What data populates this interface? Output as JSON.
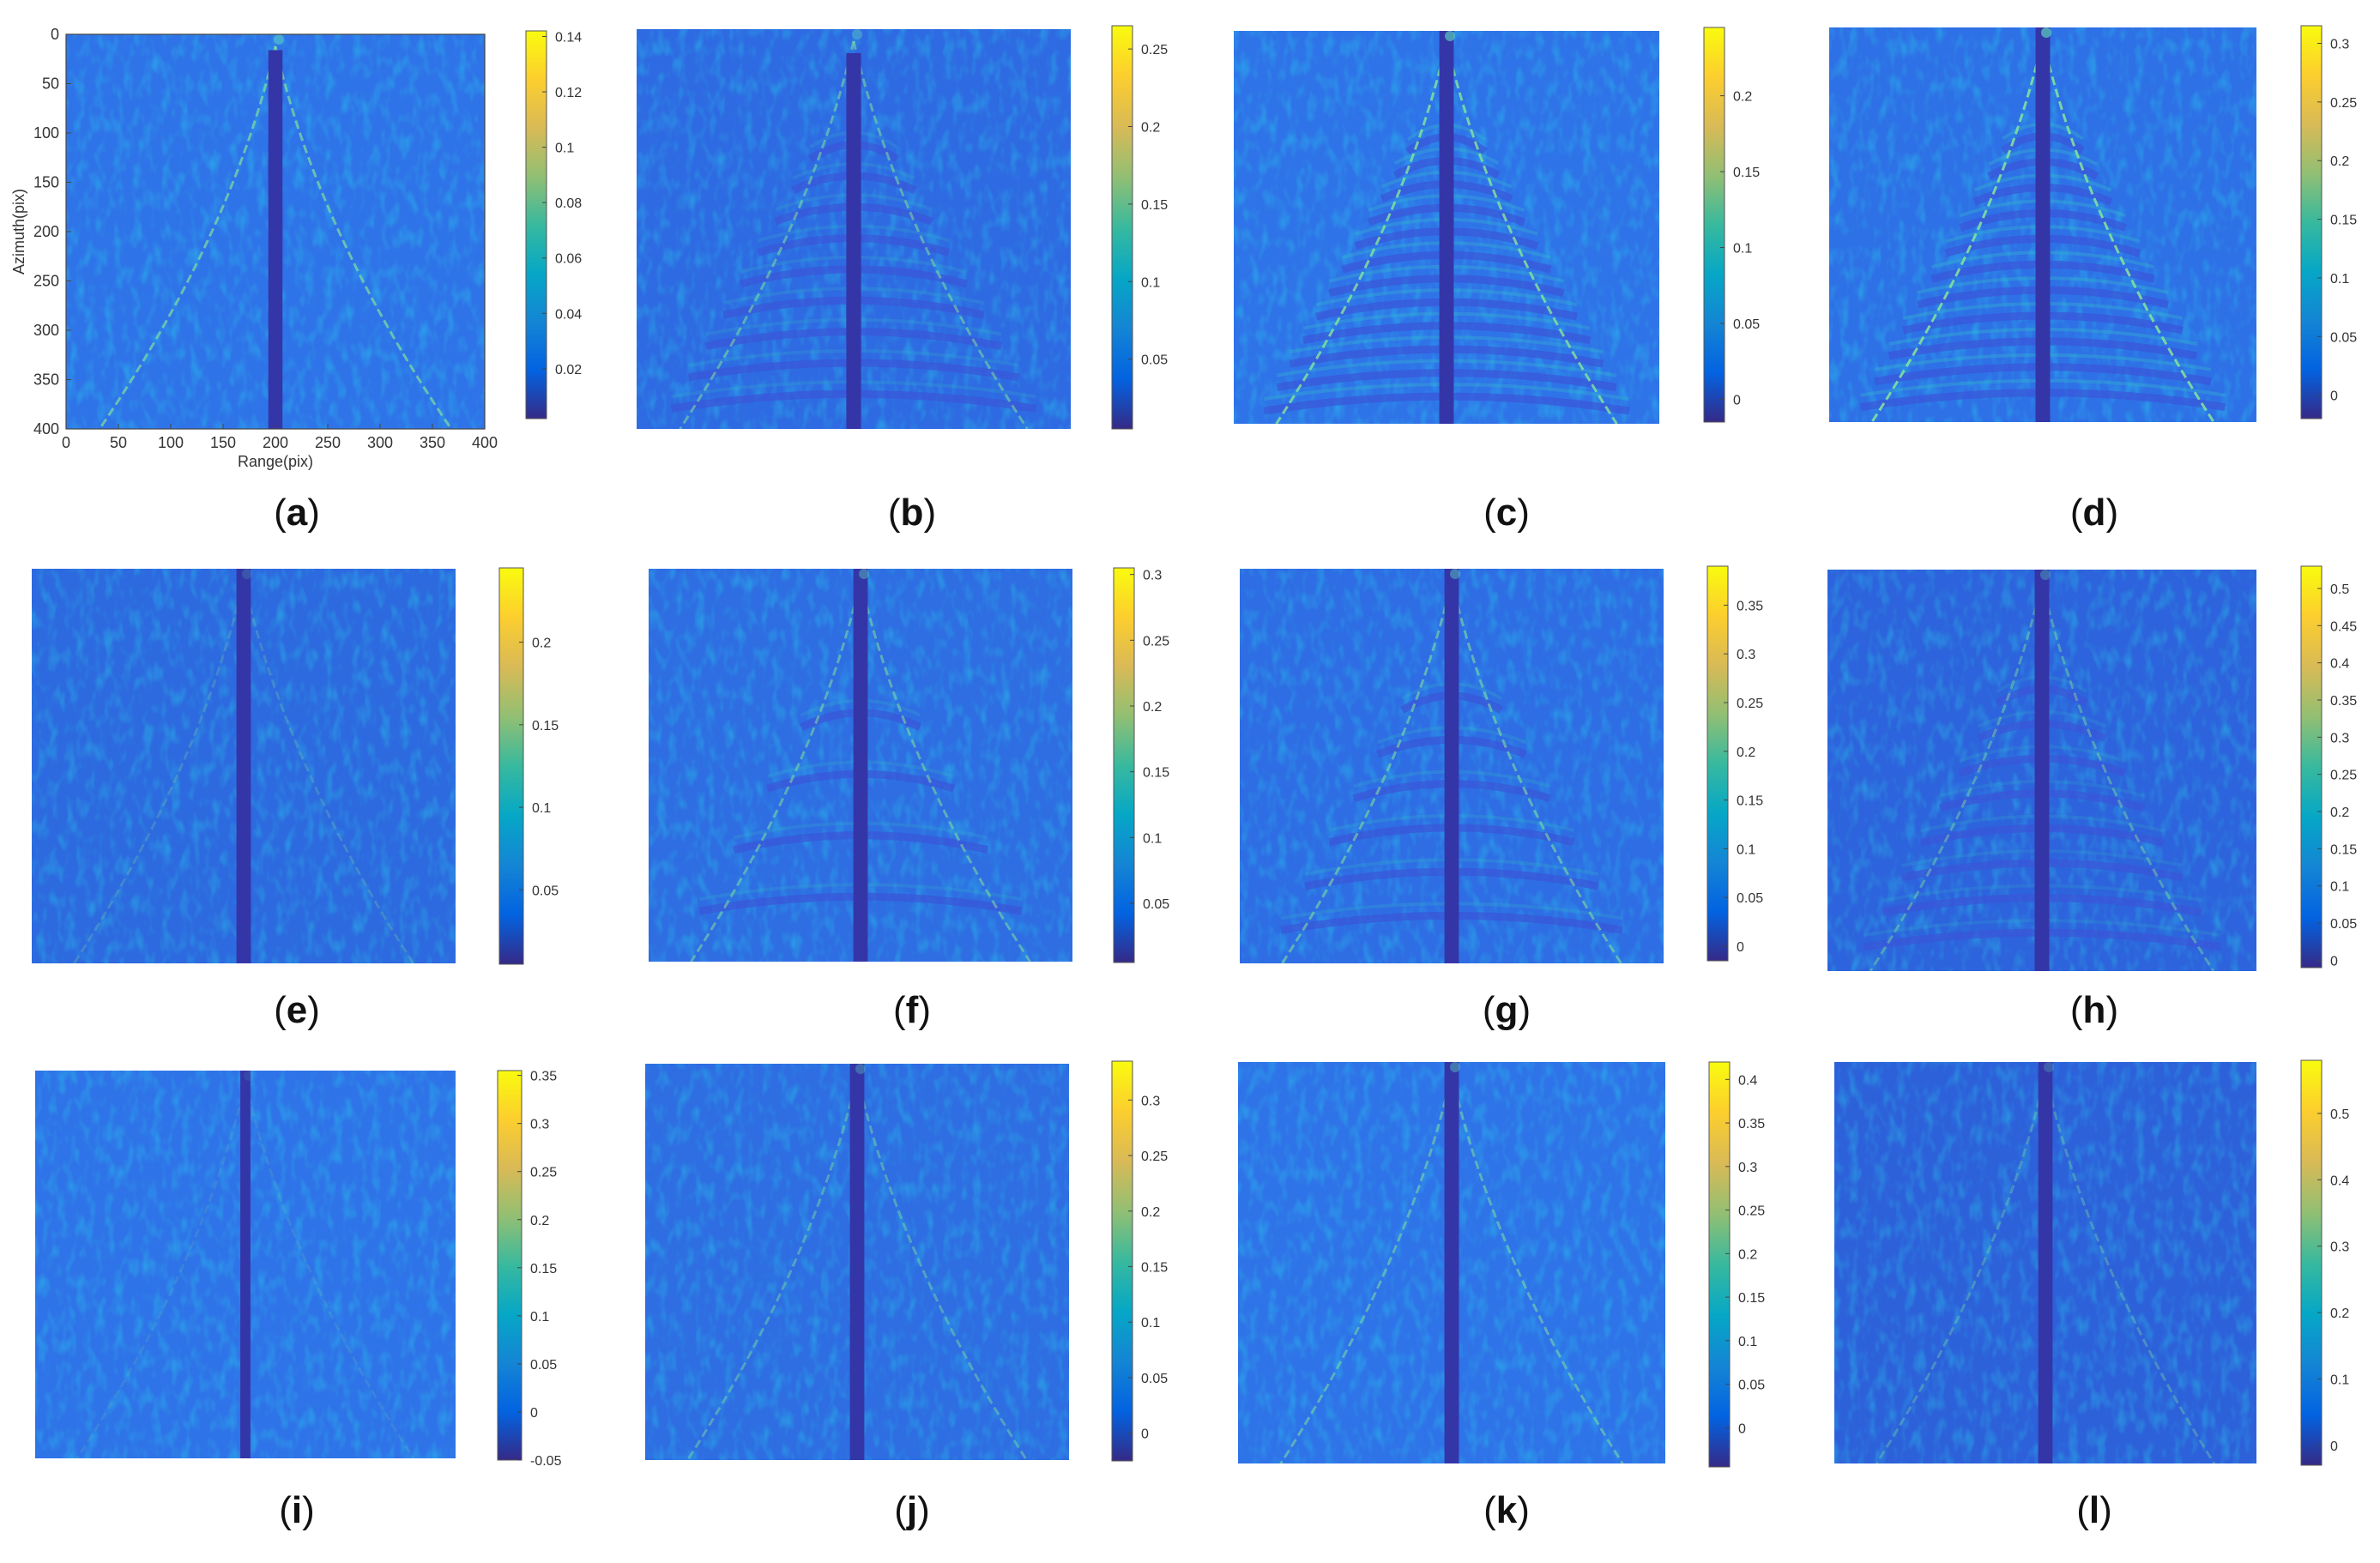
{
  "figure": {
    "colormap": [
      "#352a87",
      "#0363e1",
      "#1485d4",
      "#06a7c6",
      "#38b99e",
      "#92bf73",
      "#d9ba56",
      "#fcce2e",
      "#f9fb0e"
    ],
    "background_color": "#2f73e8",
    "stripe_color": "#3436a8"
  },
  "chart_data": [
    {
      "panel": "a",
      "caption": "a",
      "type": "heatmap",
      "xlabel": "Range(pix)",
      "ylabel": "Azimuth(pix)",
      "xlim": [
        0,
        400
      ],
      "ylim": [
        0,
        400
      ],
      "xticks": [
        "0",
        "50",
        "100",
        "150",
        "200",
        "250",
        "300",
        "350",
        "400"
      ],
      "yticks": [
        "0",
        "50",
        "100",
        "150",
        "200",
        "250",
        "300",
        "350",
        "400"
      ],
      "colorbar_ticks": [
        "0.02",
        "0.04",
        "0.06",
        "0.08",
        "0.1",
        "0.12",
        "0.14"
      ],
      "clim": [
        0.002,
        0.142
      ]
    },
    {
      "panel": "b",
      "caption": "b",
      "type": "heatmap",
      "colorbar_ticks": [
        "0.05",
        "0.1",
        "0.15",
        "0.2",
        "0.25"
      ],
      "clim": [
        0.005,
        0.265
      ]
    },
    {
      "panel": "c",
      "caption": "c",
      "type": "heatmap",
      "colorbar_ticks": [
        "0",
        "0.05",
        "0.1",
        "0.15",
        "0.2"
      ],
      "clim": [
        -0.015,
        0.245
      ]
    },
    {
      "panel": "d",
      "caption": "d",
      "type": "heatmap",
      "colorbar_ticks": [
        "0",
        "0.05",
        "0.1",
        "0.15",
        "0.2",
        "0.25",
        "0.3"
      ],
      "clim": [
        -0.02,
        0.315
      ]
    },
    {
      "panel": "e",
      "caption": "e",
      "type": "heatmap",
      "colorbar_ticks": [
        "0.05",
        "0.1",
        "0.15",
        "0.2"
      ],
      "clim": [
        0.005,
        0.245
      ]
    },
    {
      "panel": "f",
      "caption": "f",
      "type": "heatmap",
      "colorbar_ticks": [
        "0.05",
        "0.1",
        "0.15",
        "0.2",
        "0.25",
        "0.3"
      ],
      "clim": [
        0.005,
        0.305
      ]
    },
    {
      "panel": "g",
      "caption": "g",
      "type": "heatmap",
      "colorbar_ticks": [
        "0",
        "0.05",
        "0.1",
        "0.15",
        "0.2",
        "0.25",
        "0.3",
        "0.35"
      ],
      "clim": [
        -0.015,
        0.39
      ]
    },
    {
      "panel": "h",
      "caption": "h",
      "type": "heatmap",
      "colorbar_ticks": [
        "0",
        "0.05",
        "0.1",
        "0.15",
        "0.2",
        "0.25",
        "0.3",
        "0.35",
        "0.4",
        "0.45",
        "0.5"
      ],
      "clim": [
        -0.01,
        0.53
      ]
    },
    {
      "panel": "i",
      "caption": "i",
      "type": "heatmap",
      "colorbar_ticks": [
        "-0.05",
        "0",
        "0.05",
        "0.1",
        "0.15",
        "0.2",
        "0.25",
        "0.3",
        "0.35"
      ],
      "clim": [
        -0.05,
        0.355
      ]
    },
    {
      "panel": "j",
      "caption": "j",
      "type": "heatmap",
      "colorbar_ticks": [
        "0",
        "0.05",
        "0.1",
        "0.15",
        "0.2",
        "0.25",
        "0.3"
      ],
      "clim": [
        -0.025,
        0.335
      ]
    },
    {
      "panel": "k",
      "caption": "k",
      "type": "heatmap",
      "colorbar_ticks": [
        "0",
        "0.05",
        "0.1",
        "0.15",
        "0.2",
        "0.25",
        "0.3",
        "0.35",
        "0.4"
      ],
      "clim": [
        -0.045,
        0.42
      ]
    },
    {
      "panel": "l",
      "caption": "l",
      "type": "heatmap",
      "colorbar_ticks": [
        "0",
        "0.1",
        "0.2",
        "0.3",
        "0.4",
        "0.5"
      ],
      "clim": [
        -0.03,
        0.58
      ]
    }
  ]
}
